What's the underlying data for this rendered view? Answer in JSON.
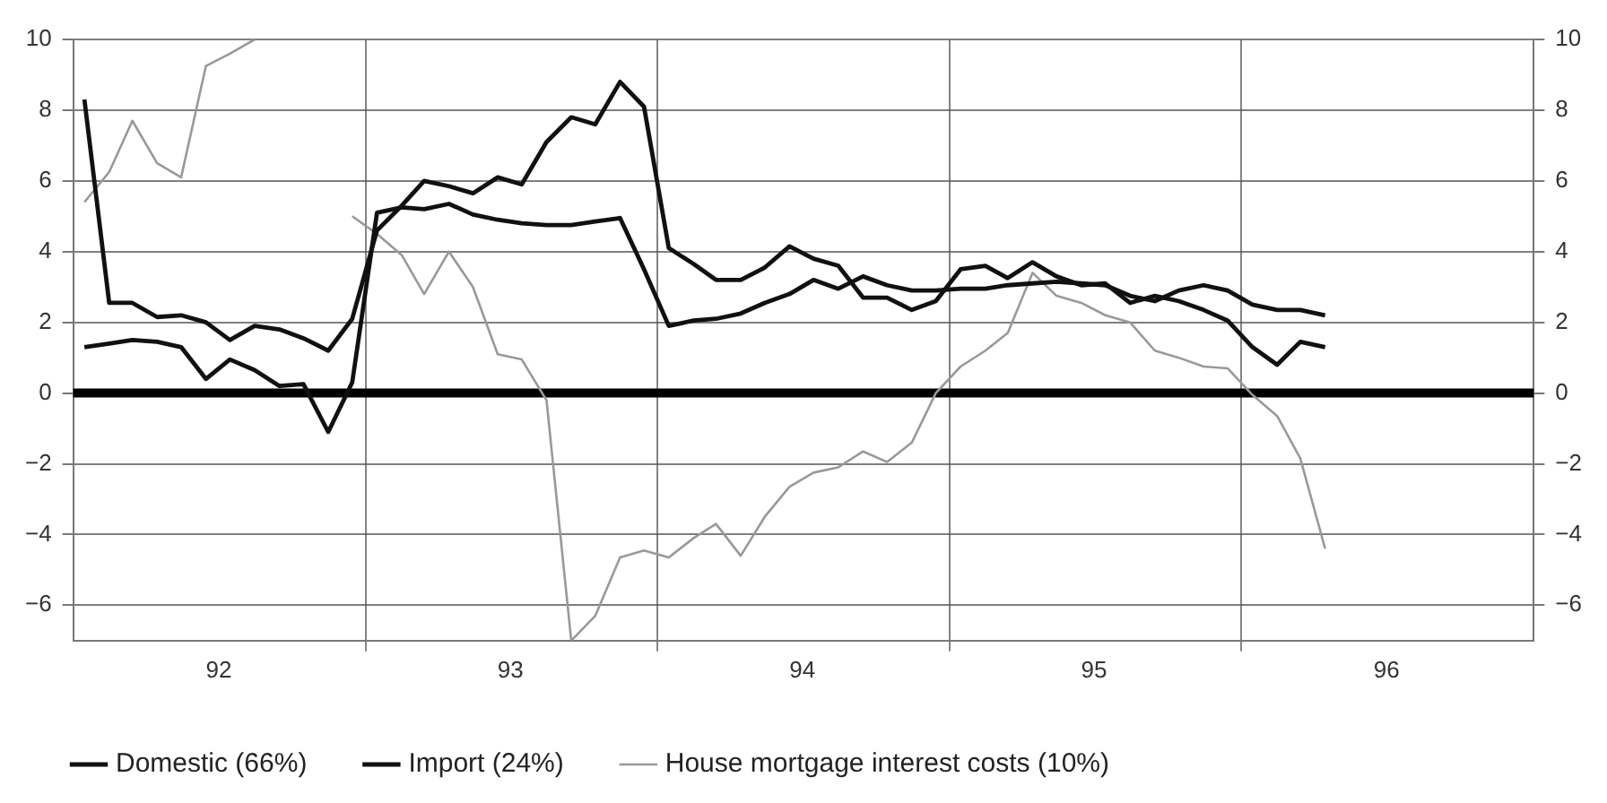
{
  "chart_data": {
    "type": "line",
    "x": [
      "1992-01-15",
      "1992-02-15",
      "1992-03-15",
      "1992-04-15",
      "1992-05-15",
      "1992-06-15",
      "1992-07-15",
      "1992-08-15",
      "1992-09-15",
      "1992-10-15",
      "1992-11-15",
      "1992-12-15",
      "1993-01-15",
      "1993-02-15",
      "1993-03-15",
      "1993-04-15",
      "1993-05-15",
      "1993-06-15",
      "1993-07-15",
      "1993-08-15",
      "1993-09-15",
      "1993-10-15",
      "1993-11-15",
      "1993-12-15",
      "1994-01-15",
      "1994-02-15",
      "1994-03-15",
      "1994-04-15",
      "1994-05-15",
      "1994-06-15",
      "1994-07-15",
      "1994-08-15",
      "1994-09-15",
      "1994-10-15",
      "1994-11-15",
      "1994-12-15",
      "1995-01-15",
      "1995-02-15",
      "1995-03-15",
      "1995-04-15",
      "1995-05-15",
      "1995-06-15",
      "1995-07-15",
      "1995-08-15",
      "1995-09-15",
      "1995-10-15",
      "1995-11-15",
      "1995-12-15",
      "1996-01-15",
      "1996-02-15",
      "1996-03-15",
      "1996-04-15"
    ],
    "series": [
      {
        "name": "Domestic (66%)",
        "color": "#111111",
        "values": [
          1.3,
          1.4,
          1.5,
          1.45,
          1.3,
          0.4,
          0.95,
          0.65,
          0.2,
          0.25,
          -1.1,
          0.3,
          5.1,
          5.25,
          5.2,
          5.35,
          5.05,
          4.9,
          4.8,
          4.75,
          4.75,
          4.85,
          4.95,
          3.5,
          1.9,
          2.05,
          2.1,
          2.25,
          2.55,
          2.8,
          3.2,
          2.95,
          3.3,
          3.05,
          2.9,
          2.9,
          2.95,
          2.95,
          3.05,
          3.1,
          3.15,
          3.1,
          3.05,
          2.75,
          2.6,
          2.9,
          3.05,
          2.9,
          2.5,
          2.35,
          2.35,
          2.2
        ]
      },
      {
        "name": "Import (24%)",
        "color": "#111111",
        "values": [
          8.3,
          2.55,
          2.55,
          2.15,
          2.2,
          2.0,
          1.5,
          1.9,
          1.8,
          1.55,
          1.2,
          2.1,
          4.6,
          5.3,
          6.0,
          5.85,
          5.65,
          6.1,
          5.9,
          7.1,
          7.8,
          7.6,
          8.8,
          8.1,
          4.1,
          3.65,
          3.2,
          3.2,
          3.55,
          4.15,
          3.8,
          3.6,
          2.7,
          2.7,
          2.35,
          2.6,
          3.5,
          3.6,
          3.25,
          3.7,
          3.3,
          3.05,
          3.1,
          2.55,
          2.75,
          2.6,
          2.35,
          2.05,
          1.3,
          0.8,
          1.45,
          1.3
        ]
      },
      {
        "name": "House mortgage interest costs (10%)",
        "color": "#999999",
        "values": [
          5.4,
          6.25,
          7.7,
          6.5,
          6.1,
          9.25,
          9.6,
          10.0,
          null,
          null,
          null,
          5.0,
          4.5,
          3.9,
          2.8,
          4.0,
          3.0,
          1.1,
          0.95,
          -0.2,
          -7.0,
          -6.3,
          -4.65,
          -4.45,
          -4.65,
          -4.1,
          -3.7,
          -4.6,
          -3.5,
          -2.65,
          -2.25,
          -2.1,
          -1.65,
          -1.95,
          -1.4,
          0.0,
          0.75,
          1.2,
          1.7,
          3.4,
          2.75,
          2.55,
          2.2,
          2.0,
          1.2,
          1.0,
          0.75,
          0.7,
          -0.05,
          -0.65,
          -1.85,
          -4.4
        ]
      }
    ],
    "xlim": [
      "1992-01-01",
      "1997-01-01"
    ],
    "xticks": [
      {
        "value": "1992-07-01",
        "label": "92"
      },
      {
        "value": "1993-01-01",
        "label": null
      },
      {
        "value": "1993-07-01",
        "label": "93"
      },
      {
        "value": "1994-01-01",
        "label": null
      },
      {
        "value": "1994-07-01",
        "label": "94"
      },
      {
        "value": "1995-01-01",
        "label": null
      },
      {
        "value": "1995-07-01",
        "label": "95"
      },
      {
        "value": "1996-01-01",
        "label": null
      },
      {
        "value": "1996-07-01",
        "label": "96"
      }
    ],
    "ylim": [
      -7,
      10
    ],
    "yticks": [
      -6,
      -4,
      -2,
      0,
      2,
      4,
      6,
      8,
      10
    ],
    "y2lim": [
      -7,
      10
    ],
    "y2ticks": [
      -6,
      -4,
      -2,
      0,
      2,
      4,
      6,
      8,
      10
    ],
    "ref_lines": [
      {
        "axis": "y",
        "value": 0,
        "color": "#000000"
      }
    ],
    "grid": true,
    "legend": "bottom",
    "marker": "none",
    "line_style": "solid"
  }
}
